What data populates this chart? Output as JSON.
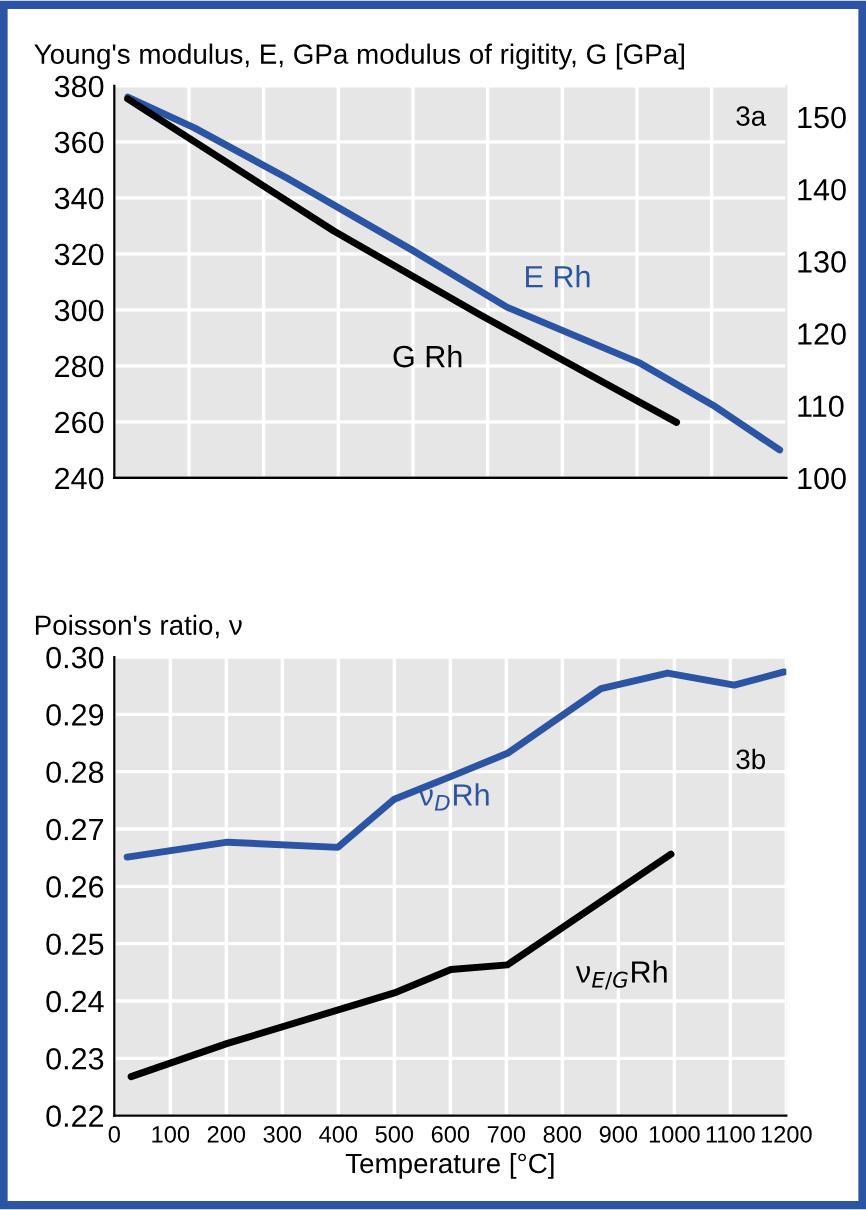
{
  "chart_data": [
    {
      "type": "line",
      "title": "Young's modulus, E, GPa modulus of rigitity, G [GPa]",
      "xlim": [
        0,
        1200
      ],
      "xticks": [
        {
          "value": 133.3,
          "label": null
        },
        {
          "value": 266.7,
          "label": null
        },
        {
          "value": 400,
          "label": null
        },
        {
          "value": 533.3,
          "label": null
        },
        {
          "value": 666.7,
          "label": null
        },
        {
          "value": 800,
          "label": null
        },
        {
          "value": 933.3,
          "label": null
        },
        {
          "value": 1066.7,
          "label": null
        }
      ],
      "ylim": [
        240,
        380
      ],
      "yticks": [
        240,
        260,
        280,
        300,
        320,
        340,
        360,
        380
      ],
      "y2lim": [
        100,
        154.3
      ],
      "y2ticks": [
        100,
        110,
        120,
        130,
        140,
        150
      ],
      "tick_labels": "y",
      "grid": true,
      "annotations": [
        "3a"
      ],
      "series": [
        {
          "name": "E Rh",
          "color": "#2c54a4",
          "x": [
            24,
            143,
            309,
            535,
            701,
            939,
            1069,
            1188
          ],
          "values": [
            376,
            365,
            347,
            321,
            301,
            281,
            266,
            250
          ]
        },
        {
          "name": "G Rh",
          "color": "#000000",
          "axis": "y2",
          "x": [
            24,
            392,
            653,
            1004
          ],
          "values": [
            152.5,
            134.2,
            122.6,
            107.7
          ]
        }
      ]
    },
    {
      "type": "line",
      "title": "Poisson's ratio, ν",
      "xlabel": "Temperature [°C]",
      "xlim": [
        0,
        1200
      ],
      "xticks": [
        0,
        100,
        200,
        300,
        400,
        500,
        600,
        700,
        800,
        900,
        1000,
        1100,
        1200
      ],
      "ylim": [
        0.22,
        0.3
      ],
      "yticks": [
        0.22,
        0.23,
        0.24,
        0.25,
        0.26,
        0.27,
        0.28,
        0.29,
        {
          "value": 0.3,
          "label": "0.30"
        }
      ],
      "grid": true,
      "annotations": [
        "3b"
      ],
      "series": [
        {
          "name": "ν$_{D}$Rh",
          "color": "#2c54a4",
          "x": [
            23,
            202,
            399,
            500,
            607,
            702,
            869,
            988,
            1107,
            1196
          ],
          "values": [
            0.2651,
            0.2677,
            0.2668,
            0.2752,
            0.2794,
            0.2832,
            0.2945,
            0.2972,
            0.2951,
            0.2974
          ]
        },
        {
          "name": "ν$_{E/G}$Rh",
          "color": "#000000",
          "x": [
            30,
            202,
            500,
            601,
            702,
            994
          ],
          "values": [
            0.2268,
            0.2326,
            0.2414,
            0.2455,
            0.2463,
            0.2656
          ]
        }
      ]
    }
  ]
}
